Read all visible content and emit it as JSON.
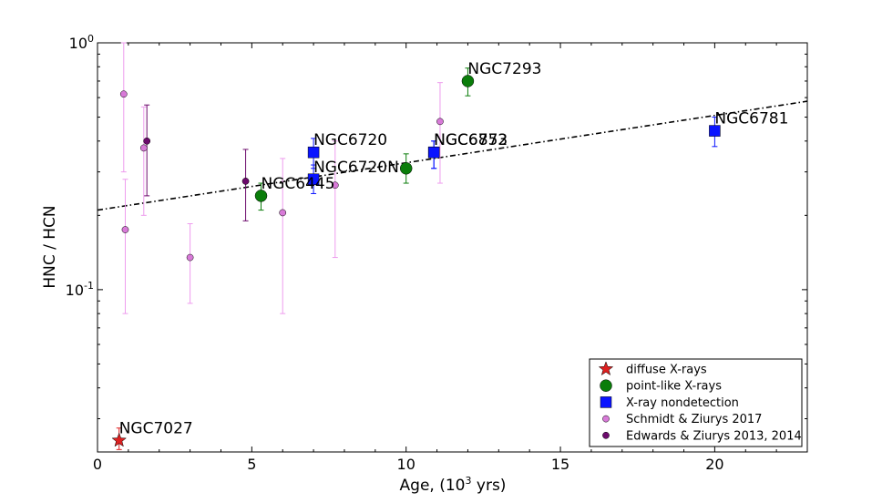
{
  "chart_data": {
    "type": "scatter",
    "xlabel_prefix": "Age, (10",
    "xlabel_exp": "3",
    "xlabel_suffix": " yrs)",
    "ylabel": "HNC / HCN",
    "xlim": [
      0,
      23
    ],
    "ylim": [
      0.022,
      1.0
    ],
    "yscale": "log",
    "x_ticks": [
      0,
      5,
      10,
      15,
      20
    ],
    "y_ticks": [
      {
        "value": 1.0,
        "base": "10",
        "exp": "0"
      },
      {
        "value": 0.1,
        "base": "10",
        "exp": "-1"
      }
    ],
    "legend_position": "lower-right",
    "colors": {
      "diffuse": "#dd2020",
      "point": "#0a7d0a",
      "nondetect": "#0a14ff",
      "schmidt": "#d87ad8",
      "schmidt_err": "#ee9cee",
      "edwards": "#6c0a6c"
    },
    "fit_line": {
      "x": [
        0,
        23
      ],
      "y": [
        0.21,
        0.58
      ],
      "style": "dash-dot"
    },
    "series": [
      {
        "name": "diffuse X-rays",
        "marker": "star",
        "color": "diffuse",
        "points": [
          {
            "x": 0.7,
            "y": 0.0245,
            "ylo": 0.0225,
            "yhi": 0.0275,
            "label": "NGC7027"
          }
        ]
      },
      {
        "name": "point-like X-rays",
        "marker": "circle",
        "color": "point",
        "points": [
          {
            "x": 5.3,
            "y": 0.24,
            "ylo": 0.21,
            "yhi": 0.27,
            "label": "NGC6445"
          },
          {
            "x": 10.0,
            "y": 0.31,
            "ylo": 0.27,
            "yhi": 0.355,
            "label": ""
          },
          {
            "x": 12.0,
            "y": 0.7,
            "ylo": 0.61,
            "yhi": 0.79,
            "label": "NGC7293"
          }
        ]
      },
      {
        "name": "X-ray nondetection",
        "marker": "square",
        "color": "nondetect",
        "points": [
          {
            "x": 7.0,
            "y": 0.36,
            "ylo": 0.31,
            "yhi": 0.41,
            "label": "NGC6720"
          },
          {
            "x": 7.0,
            "y": 0.28,
            "ylo": 0.245,
            "yhi": 0.32,
            "label": "NGC6720N"
          },
          {
            "x": 10.9,
            "y": 0.36,
            "ylo": 0.31,
            "yhi": 0.4,
            "label": "NGC6853"
          },
          {
            "x": 10.9,
            "y": 0.36,
            "ylo": 0.31,
            "yhi": 0.4,
            "label": "NGC6772"
          },
          {
            "x": 20.0,
            "y": 0.44,
            "ylo": 0.38,
            "yhi": 0.5,
            "label": "NGC6781"
          }
        ]
      },
      {
        "name": "Schmidt & Ziurys 2017",
        "marker": "small-circle",
        "color": "schmidt",
        "points": [
          {
            "x": 0.85,
            "y": 0.62,
            "ylo": 0.3,
            "yhi": 1.0,
            "label": ""
          },
          {
            "x": 0.9,
            "y": 0.175,
            "ylo": 0.08,
            "yhi": 0.28,
            "label": ""
          },
          {
            "x": 1.5,
            "y": 0.375,
            "ylo": 0.2,
            "yhi": 0.55,
            "label": ""
          },
          {
            "x": 3.0,
            "y": 0.135,
            "ylo": 0.088,
            "yhi": 0.185,
            "label": ""
          },
          {
            "x": 6.0,
            "y": 0.205,
            "ylo": 0.08,
            "yhi": 0.34,
            "label": ""
          },
          {
            "x": 7.7,
            "y": 0.265,
            "ylo": 0.135,
            "yhi": 0.4,
            "label": ""
          },
          {
            "x": 11.1,
            "y": 0.48,
            "ylo": 0.27,
            "yhi": 0.69,
            "label": ""
          }
        ]
      },
      {
        "name": "Edwards & Ziurys 2013, 2014",
        "marker": "small-circle",
        "color": "edwards",
        "points": [
          {
            "x": 1.6,
            "y": 0.4,
            "ylo": 0.24,
            "yhi": 0.56,
            "label": ""
          },
          {
            "x": 4.8,
            "y": 0.275,
            "ylo": 0.19,
            "yhi": 0.37,
            "label": ""
          }
        ]
      }
    ]
  }
}
